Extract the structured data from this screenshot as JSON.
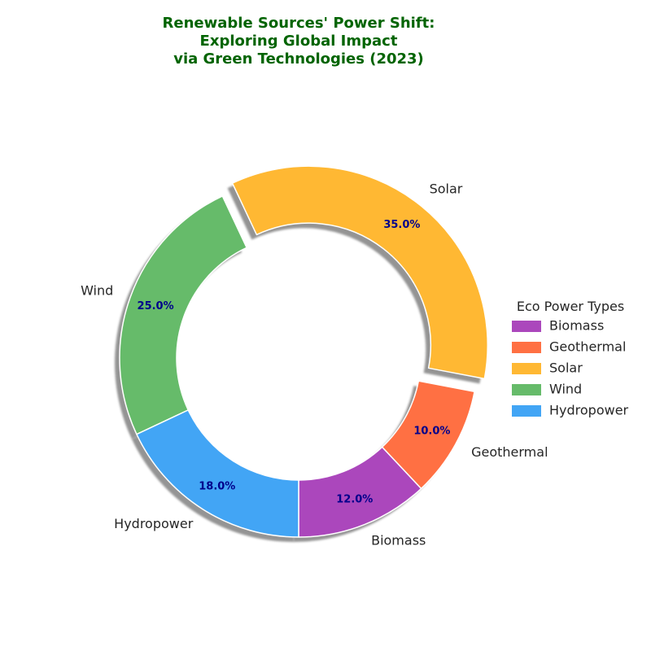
{
  "chart_data": {
    "type": "pie",
    "subtype": "donut",
    "title": [
      "Renewable Sources' Power Shift:",
      "Exploring Global Impact",
      "via Green Technologies (2023)"
    ],
    "title_color": "#006400",
    "percent_label_color": "#00008b",
    "legend": {
      "title": "Eco Power Types",
      "placement": "center-right"
    },
    "slices": [
      {
        "label": "Biomass",
        "value": 12.0,
        "percent_label": "12.0%",
        "color": "#ab47bc",
        "exploded": false
      },
      {
        "label": "Geothermal",
        "value": 10.0,
        "percent_label": "10.0%",
        "color": "#ff7043",
        "exploded": false
      },
      {
        "label": "Solar",
        "value": 35.0,
        "percent_label": "35.0%",
        "color": "#ffb833",
        "exploded": true
      },
      {
        "label": "Wind",
        "value": 25.0,
        "percent_label": "25.0%",
        "color": "#66bb6a",
        "exploded": false
      },
      {
        "label": "Hydropower",
        "value": 18.0,
        "percent_label": "18.0%",
        "color": "#42a5f5",
        "exploded": false
      }
    ],
    "shadow": true
  }
}
